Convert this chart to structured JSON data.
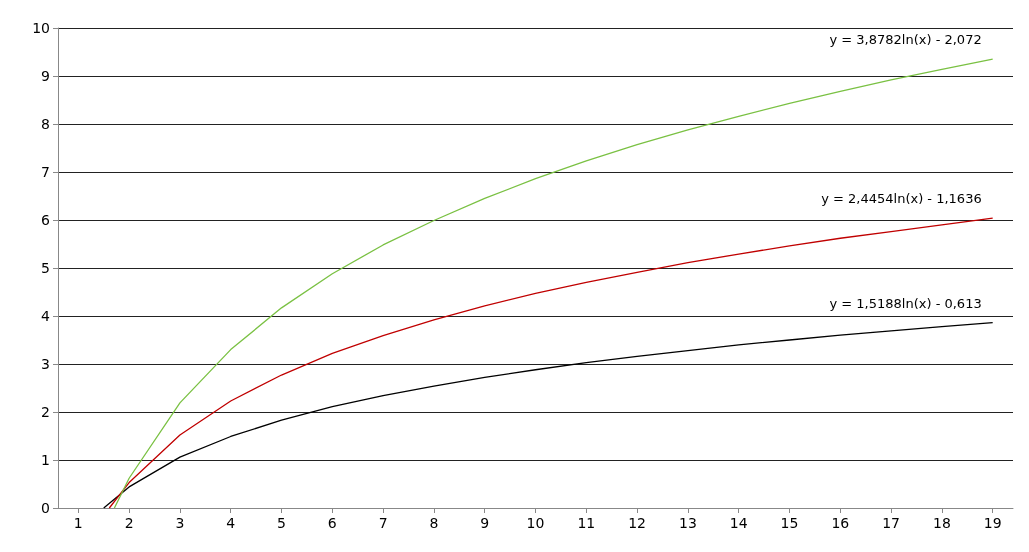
{
  "chart_data": {
    "type": "line",
    "x": [
      1.5,
      2,
      3,
      4,
      5,
      6,
      7,
      8,
      9,
      10,
      11,
      12,
      13,
      14,
      15,
      16,
      17,
      18,
      19
    ],
    "series": [
      {
        "color": "#000000",
        "values": [
          0.0,
          0.44,
          1.06,
          1.49,
          1.83,
          2.11,
          2.34,
          2.54,
          2.72,
          2.88,
          3.03,
          3.16,
          3.28,
          3.4,
          3.5,
          3.6,
          3.69,
          3.78,
          3.86
        ]
      },
      {
        "color": "#c00000",
        "x": [
          1.61,
          2,
          3,
          4,
          5,
          6,
          7,
          8,
          9,
          10,
          11,
          12,
          13,
          14,
          15,
          16,
          17,
          18,
          19
        ],
        "values": [
          0.0,
          0.53,
          1.52,
          2.23,
          2.77,
          3.22,
          3.59,
          3.92,
          4.21,
          4.47,
          4.7,
          4.91,
          5.11,
          5.29,
          5.46,
          5.62,
          5.76,
          5.9,
          6.04
        ]
      },
      {
        "color": "#7ac143",
        "x": [
          1.71,
          2,
          3,
          4,
          5,
          6,
          7,
          8,
          9,
          10,
          11,
          12,
          13,
          14,
          15,
          16,
          17,
          18,
          19
        ],
        "values": [
          0.0,
          0.62,
          2.19,
          3.3,
          4.17,
          4.88,
          5.48,
          5.99,
          6.45,
          6.86,
          7.23,
          7.57,
          7.88,
          8.16,
          8.43,
          8.68,
          8.92,
          9.14,
          9.35
        ]
      }
    ],
    "xlim": [
      0.6,
      19.4
    ],
    "xticks": [
      1,
      2,
      3,
      4,
      5,
      6,
      7,
      8,
      9,
      10,
      11,
      12,
      13,
      14,
      15,
      16,
      17,
      18,
      19
    ],
    "ylim": [
      0,
      10
    ],
    "yticks": [
      0,
      1,
      2,
      3,
      4,
      5,
      6,
      7,
      8,
      9,
      10
    ],
    "grid": "y",
    "marker": "none",
    "line_style": "solid",
    "annotations": [
      "y = 3,8782ln(x) - 2,072",
      "y = 2,4454ln(x) - 1,1636",
      "y = 1,5188ln(x) - 0,613"
    ]
  }
}
